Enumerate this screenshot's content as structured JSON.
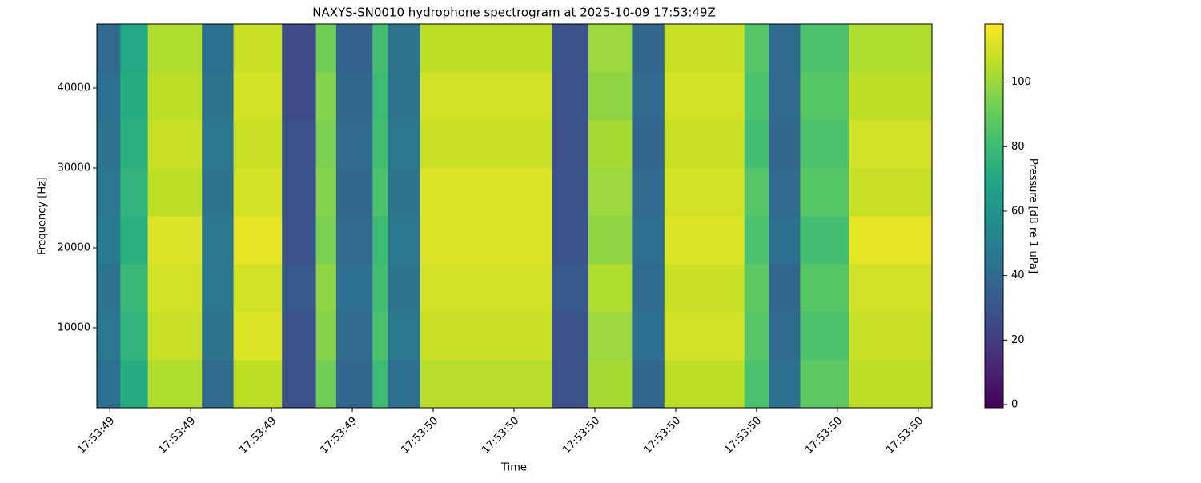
{
  "chart_data": {
    "type": "heatmap",
    "title": "NAXYS-SN0010 hydrophone spectrogram at 2025-10-09 17:53:49Z",
    "xlabel": "Time",
    "ylabel": "Frequency [Hz]",
    "colorbar_label": "Pressure [dB re 1 uPa]",
    "colormap": "viridis",
    "x_edges": [
      49.584,
      49.613,
      49.647,
      49.714,
      49.753,
      49.813,
      49.855,
      49.88,
      49.925,
      49.944,
      49.984,
      50.147,
      50.192,
      50.246,
      50.286,
      50.385,
      50.415,
      50.454,
      50.514,
      50.617
    ],
    "y_edges": [
      0,
      6000,
      12000,
      18000,
      24000,
      30000,
      36000,
      42000,
      48000
    ],
    "z": [
      [
        42,
        72,
        104,
        40,
        106,
        28,
        92,
        38,
        80,
        42,
        105,
        28,
        102,
        38,
        106,
        84,
        42,
        88,
        106
      ],
      [
        46,
        76,
        108,
        44,
        112,
        30,
        96,
        40,
        84,
        46,
        108,
        30,
        100,
        42,
        110,
        86,
        40,
        84,
        108
      ],
      [
        44,
        78,
        110,
        46,
        110,
        32,
        98,
        42,
        82,
        44,
        110,
        32,
        104,
        40,
        108,
        88,
        38,
        86,
        110
      ],
      [
        48,
        74,
        112,
        46,
        114,
        30,
        94,
        40,
        80,
        46,
        112,
        30,
        98,
        42,
        112,
        84,
        42,
        82,
        114
      ],
      [
        46,
        76,
        106,
        44,
        110,
        30,
        96,
        38,
        84,
        44,
        112,
        30,
        100,
        40,
        110,
        86,
        40,
        86,
        108
      ],
      [
        44,
        74,
        108,
        46,
        108,
        28,
        94,
        40,
        82,
        46,
        108,
        28,
        102,
        38,
        108,
        82,
        38,
        84,
        110
      ],
      [
        42,
        72,
        106,
        44,
        110,
        26,
        96,
        38,
        80,
        44,
        110,
        28,
        98,
        40,
        110,
        84,
        40,
        86,
        106
      ],
      [
        40,
        70,
        104,
        42,
        108,
        26,
        92,
        36,
        82,
        44,
        106,
        30,
        100,
        38,
        108,
        86,
        40,
        84,
        104
      ]
    ],
    "xlim": [
      49.584,
      50.617
    ],
    "xticks": [
      {
        "value": 49.6,
        "label": "17:53:49"
      },
      {
        "value": 49.7,
        "label": "17:53:49"
      },
      {
        "value": 49.8,
        "label": "17:53:49"
      },
      {
        "value": 49.9,
        "label": "17:53:49"
      },
      {
        "value": 50.0,
        "label": "17:53:50"
      },
      {
        "value": 50.1,
        "label": "17:53:50"
      },
      {
        "value": 50.2,
        "label": "17:53:50"
      },
      {
        "value": 50.3,
        "label": "17:53:50"
      },
      {
        "value": 50.4,
        "label": "17:53:50"
      },
      {
        "value": 50.5,
        "label": "17:53:50"
      },
      {
        "value": 50.6,
        "label": "17:53:50"
      }
    ],
    "ylim": [
      0,
      48000
    ],
    "yticks": [
      10000,
      20000,
      30000,
      40000
    ],
    "clim": [
      -1,
      118
    ],
    "cticks": [
      0,
      20,
      40,
      60,
      80,
      100
    ]
  }
}
